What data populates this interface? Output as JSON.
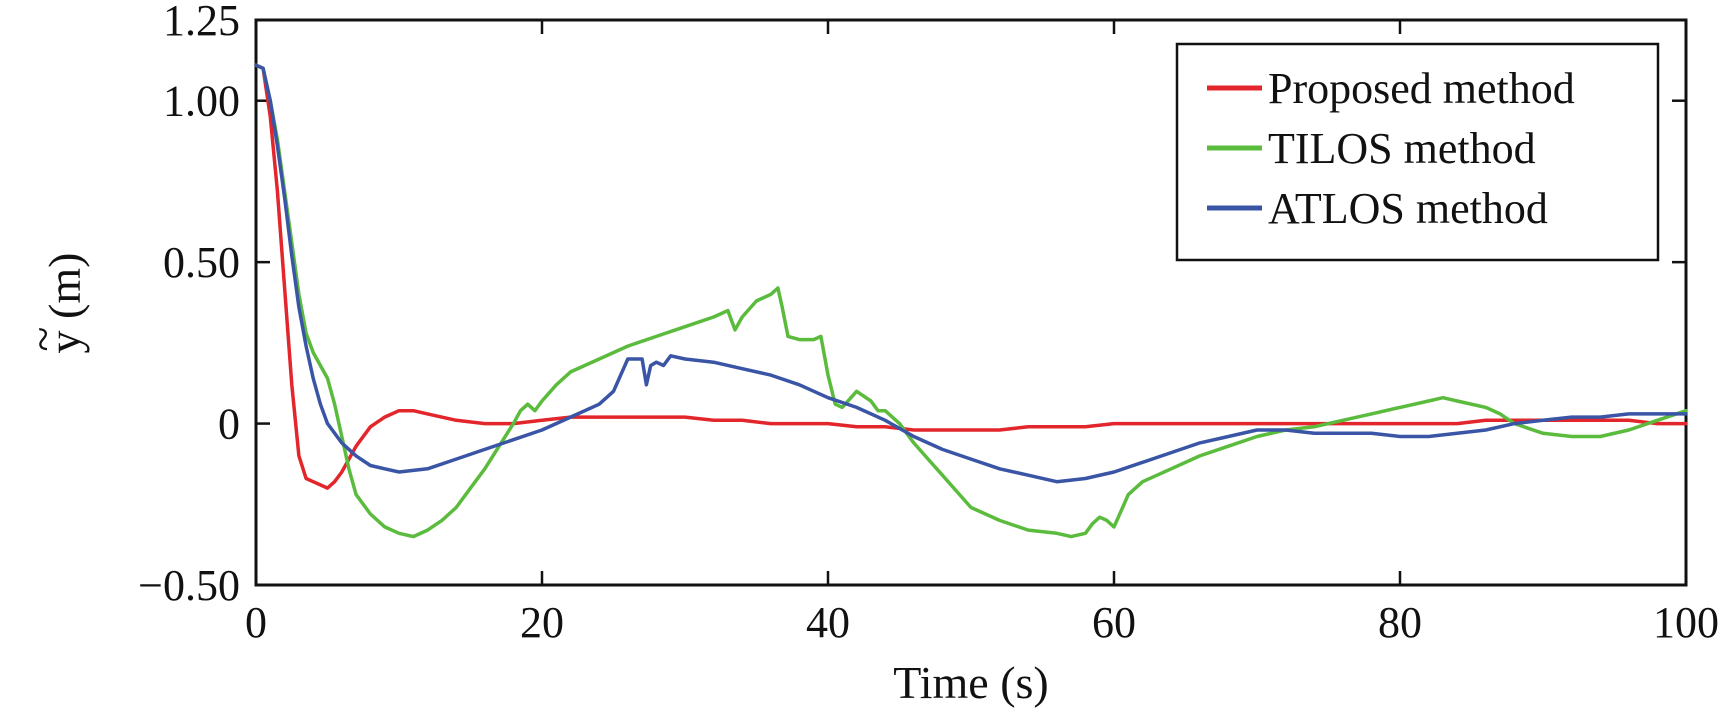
{
  "chart_data": {
    "type": "line",
    "xlabel": "Time (s)",
    "ylabel": "y (m)",
    "ylabel_accent": "~",
    "xlim": [
      0,
      100
    ],
    "ylim": [
      -0.5,
      1.25
    ],
    "x_ticks": [
      0,
      20,
      40,
      60,
      80,
      100
    ],
    "x_tick_labels": [
      "0",
      "20",
      "40",
      "60",
      "80",
      "100"
    ],
    "y_ticks": [
      -0.5,
      0,
      0.5,
      1.0,
      1.25
    ],
    "y_tick_labels": [
      "−0.50",
      "0",
      "0.50",
      "1.00",
      "1.25"
    ],
    "grid": false,
    "legend_position": "top-right",
    "series": [
      {
        "name": "Proposed method",
        "color": "#e2262b",
        "x": [
          0,
          0.5,
          1,
          1.5,
          2,
          2.5,
          3,
          3.5,
          4,
          4.5,
          5,
          5.5,
          6,
          7,
          8,
          9,
          10,
          11,
          12,
          14,
          16,
          18,
          20,
          22,
          24,
          26,
          28,
          30,
          32,
          34,
          36,
          38,
          40,
          42,
          44,
          46,
          48,
          50,
          52,
          54,
          56,
          58,
          60,
          62,
          64,
          66,
          68,
          70,
          72,
          74,
          76,
          78,
          80,
          82,
          84,
          86,
          88,
          90,
          92,
          94,
          96,
          98,
          100
        ],
        "y": [
          1.11,
          1.1,
          0.95,
          0.72,
          0.42,
          0.12,
          -0.1,
          -0.17,
          -0.18,
          -0.19,
          -0.2,
          -0.18,
          -0.15,
          -0.07,
          -0.01,
          0.02,
          0.04,
          0.04,
          0.03,
          0.01,
          0.0,
          0.0,
          0.01,
          0.02,
          0.02,
          0.02,
          0.02,
          0.02,
          0.01,
          0.01,
          0.0,
          0.0,
          0.0,
          -0.01,
          -0.01,
          -0.02,
          -0.02,
          -0.02,
          -0.02,
          -0.01,
          -0.01,
          -0.01,
          0.0,
          0.0,
          0.0,
          0.0,
          0.0,
          0.0,
          0.0,
          0.0,
          0.0,
          0.0,
          0.0,
          0.0,
          0.0,
          0.01,
          0.01,
          0.01,
          0.01,
          0.01,
          0.01,
          0.0,
          0.0
        ]
      },
      {
        "name": "TILOS method",
        "color": "#5bbb3d",
        "x": [
          0,
          0.5,
          1,
          1.5,
          2,
          2.5,
          3,
          3.5,
          4,
          4.5,
          5,
          5.5,
          6,
          6.5,
          7,
          8,
          9,
          10,
          11,
          12,
          13,
          14,
          15,
          16,
          17,
          18,
          18.5,
          19,
          19.5,
          20,
          21,
          22,
          24,
          26,
          28,
          30,
          32,
          33,
          33.5,
          34,
          35,
          36,
          36.5,
          36.8,
          37.2,
          38,
          39,
          39.5,
          40,
          40.5,
          41,
          42,
          43,
          43.5,
          44,
          45,
          46,
          47,
          48,
          49,
          50,
          52,
          54,
          56,
          57,
          58,
          58.5,
          59,
          59.5,
          60,
          60.5,
          61,
          62,
          64,
          66,
          68,
          70,
          72,
          74,
          76,
          78,
          80,
          82,
          83,
          84,
          86,
          87,
          88,
          90,
          92,
          94,
          96,
          98,
          100
        ],
        "y": [
          1.11,
          1.1,
          1.0,
          0.88,
          0.72,
          0.56,
          0.4,
          0.28,
          0.22,
          0.18,
          0.14,
          0.06,
          -0.04,
          -0.14,
          -0.22,
          -0.28,
          -0.32,
          -0.34,
          -0.35,
          -0.33,
          -0.3,
          -0.26,
          -0.2,
          -0.14,
          -0.07,
          0.0,
          0.04,
          0.06,
          0.04,
          0.07,
          0.12,
          0.16,
          0.2,
          0.24,
          0.27,
          0.3,
          0.33,
          0.35,
          0.29,
          0.33,
          0.38,
          0.4,
          0.42,
          0.36,
          0.27,
          0.26,
          0.26,
          0.27,
          0.15,
          0.06,
          0.05,
          0.1,
          0.07,
          0.04,
          0.04,
          0.0,
          -0.06,
          -0.11,
          -0.16,
          -0.21,
          -0.26,
          -0.3,
          -0.33,
          -0.34,
          -0.35,
          -0.34,
          -0.31,
          -0.29,
          -0.3,
          -0.32,
          -0.27,
          -0.22,
          -0.18,
          -0.14,
          -0.1,
          -0.07,
          -0.04,
          -0.02,
          -0.01,
          0.01,
          0.03,
          0.05,
          0.07,
          0.08,
          0.07,
          0.05,
          0.03,
          0.0,
          -0.03,
          -0.04,
          -0.04,
          -0.02,
          0.01,
          0.04
        ]
      },
      {
        "name": "ATLOS method",
        "color": "#3a55a6",
        "x": [
          0,
          0.5,
          1,
          1.5,
          2,
          2.5,
          3,
          3.5,
          4,
          4.5,
          5,
          6,
          7,
          8,
          9,
          10,
          12,
          14,
          16,
          18,
          20,
          22,
          24,
          25,
          26,
          27,
          27.3,
          27.6,
          28,
          28.5,
          29,
          30,
          32,
          34,
          36,
          38,
          40,
          42,
          44,
          46,
          48,
          50,
          52,
          54,
          56,
          58,
          60,
          62,
          64,
          66,
          68,
          70,
          72,
          74,
          76,
          78,
          80,
          82,
          84,
          86,
          88,
          90,
          92,
          94,
          96,
          98,
          100
        ],
        "y": [
          1.11,
          1.1,
          1.0,
          0.86,
          0.7,
          0.52,
          0.36,
          0.24,
          0.14,
          0.06,
          0.0,
          -0.06,
          -0.1,
          -0.13,
          -0.14,
          -0.15,
          -0.14,
          -0.11,
          -0.08,
          -0.05,
          -0.02,
          0.02,
          0.06,
          0.1,
          0.2,
          0.2,
          0.12,
          0.18,
          0.19,
          0.18,
          0.21,
          0.2,
          0.19,
          0.17,
          0.15,
          0.12,
          0.08,
          0.05,
          0.01,
          -0.04,
          -0.08,
          -0.11,
          -0.14,
          -0.16,
          -0.18,
          -0.17,
          -0.15,
          -0.12,
          -0.09,
          -0.06,
          -0.04,
          -0.02,
          -0.02,
          -0.03,
          -0.03,
          -0.03,
          -0.04,
          -0.04,
          -0.03,
          -0.02,
          0.0,
          0.01,
          0.02,
          0.02,
          0.03,
          0.03,
          0.03
        ]
      }
    ]
  }
}
